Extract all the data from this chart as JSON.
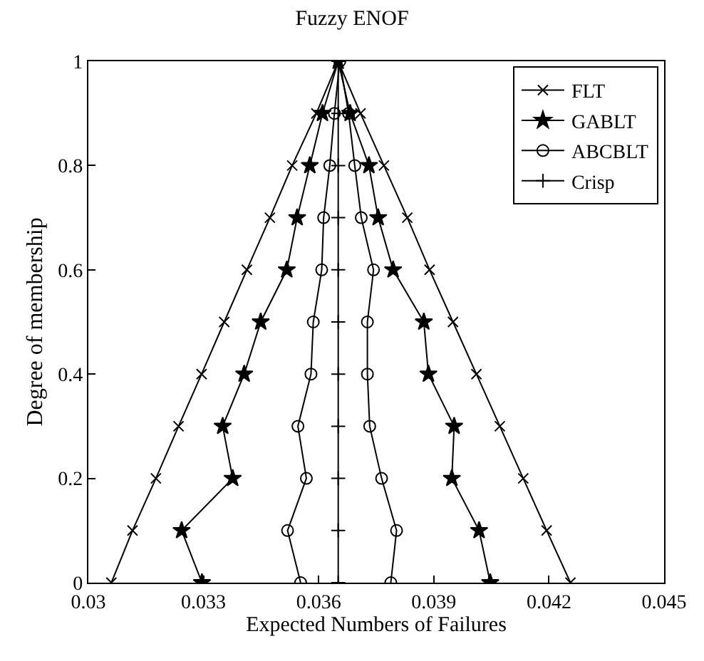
{
  "chart_data": {
    "type": "line",
    "title": "Fuzzy ENOF",
    "xlabel": "Expected Numbers of Failures",
    "ylabel": "Degree of membership",
    "xlim": [
      0.03,
      0.045
    ],
    "xticks": [
      0.03,
      0.033,
      0.036,
      0.039,
      0.042,
      0.045
    ],
    "ylim": [
      0,
      1
    ],
    "yticks": [
      0,
      0.2,
      0.4,
      0.6,
      0.8,
      1
    ],
    "grid": false,
    "legend": "top right",
    "series": [
      {
        "name": "FLT",
        "color": "#000000",
        "marker": "cross",
        "x": [
          0.0306,
          0.03115,
          0.03176,
          0.03235,
          0.03295,
          0.03354,
          0.03413,
          0.03473,
          0.03531,
          0.03594,
          0.03651,
          0.03709,
          0.0377,
          0.03831,
          0.03889,
          0.0395,
          0.04011,
          0.04072,
          0.04133,
          0.04194,
          0.04256
        ],
        "values": [
          0,
          0.1,
          0.2,
          0.3,
          0.4,
          0.5,
          0.6,
          0.7,
          0.8,
          0.9,
          1,
          0.9,
          0.8,
          0.7,
          0.6,
          0.5,
          0.4,
          0.3,
          0.2,
          0.1,
          0
        ]
      },
      {
        "name": "GABLT",
        "color": "#000000",
        "marker": "star",
        "x": [
          0.03296,
          0.03243,
          0.03376,
          0.0335,
          0.03406,
          0.03449,
          0.03517,
          0.03544,
          0.03577,
          0.0361,
          0.03651,
          0.03682,
          0.03731,
          0.03755,
          0.03794,
          0.03874,
          0.03886,
          0.03953,
          0.03947,
          0.04018,
          0.04047
        ],
        "values": [
          0,
          0.1,
          0.2,
          0.3,
          0.4,
          0.5,
          0.6,
          0.7,
          0.8,
          0.9,
          1,
          0.9,
          0.8,
          0.7,
          0.6,
          0.5,
          0.4,
          0.3,
          0.2,
          0.1,
          0
        ]
      },
      {
        "name": "ABCBLT",
        "color": "#000000",
        "marker": "circle",
        "x": [
          0.03553,
          0.03519,
          0.03568,
          0.03546,
          0.0358,
          0.03586,
          0.03608,
          0.03613,
          0.03629,
          0.03641,
          0.03655,
          0.03678,
          0.03694,
          0.03711,
          0.03743,
          0.03727,
          0.03727,
          0.03733,
          0.03764,
          0.03803,
          0.03788
        ],
        "values": [
          0,
          0.1,
          0.2,
          0.3,
          0.4,
          0.5,
          0.6,
          0.7,
          0.8,
          0.9,
          1,
          0.9,
          0.8,
          0.7,
          0.6,
          0.5,
          0.4,
          0.3,
          0.2,
          0.1,
          0
        ]
      },
      {
        "name": "Crisp",
        "color": "#000000",
        "marker": "plus",
        "x": [
          0.03651,
          0.03651,
          0.03651,
          0.03651,
          0.03651,
          0.03651,
          0.03651,
          0.03651,
          0.03651,
          0.03651,
          0.03651
        ],
        "values": [
          0,
          0.1,
          0.2,
          0.3,
          0.4,
          0.5,
          0.6,
          0.7,
          0.8,
          0.9,
          1
        ]
      }
    ]
  }
}
